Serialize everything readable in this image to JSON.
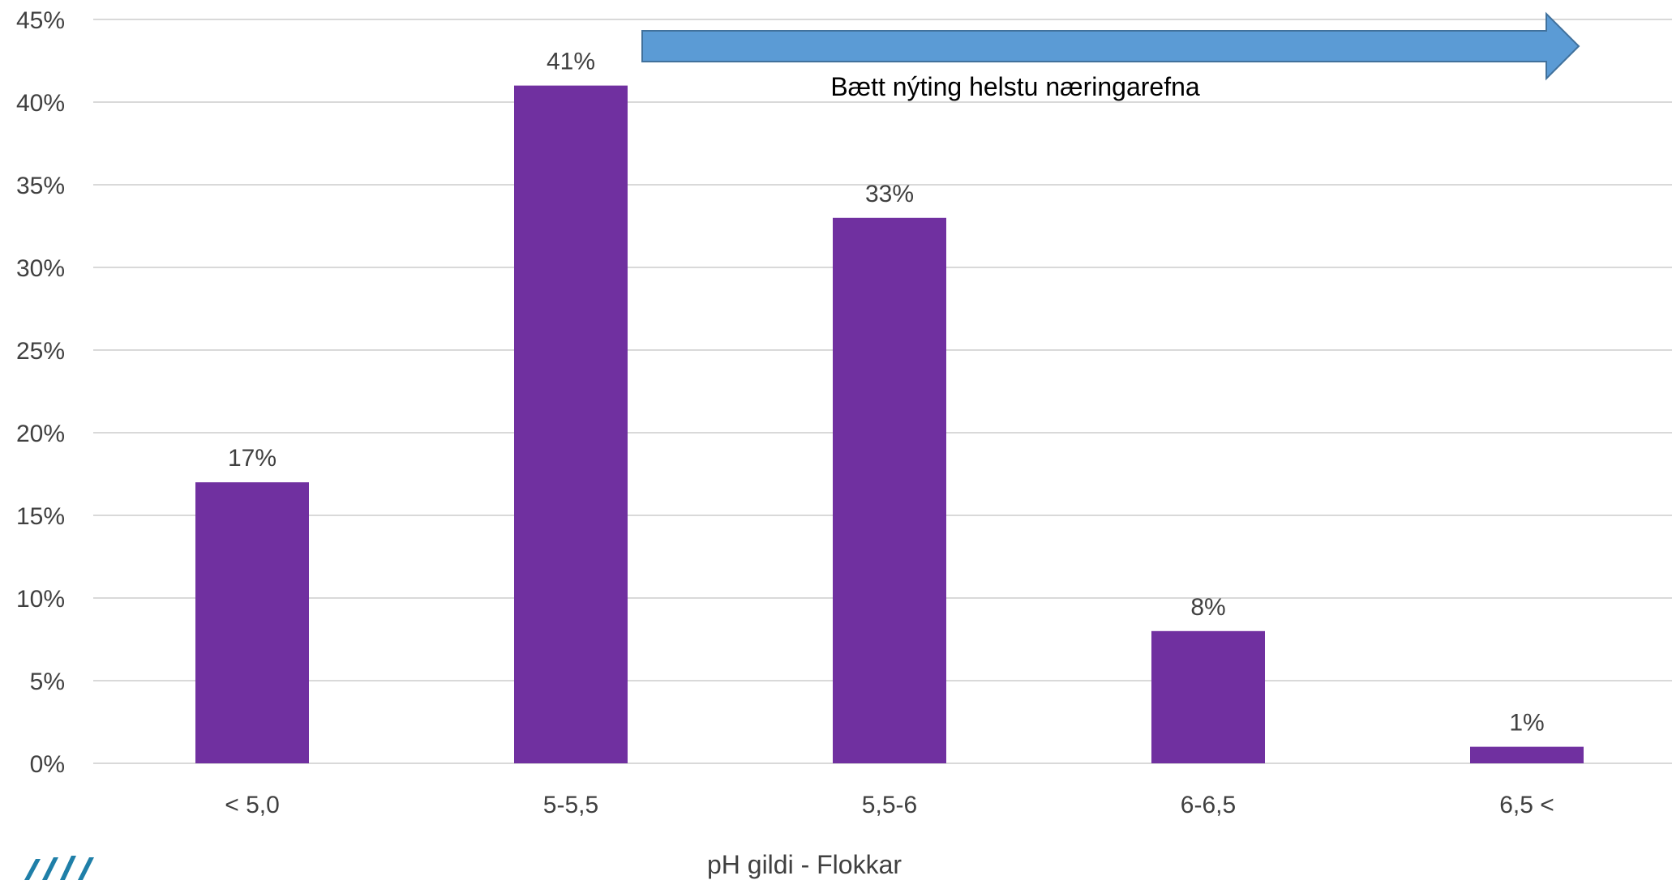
{
  "chart_data": {
    "type": "bar",
    "categories": [
      "< 5,0",
      "5-5,5",
      "5,5-6",
      "6-6,5",
      "6,5 <"
    ],
    "values": [
      17,
      41,
      33,
      8,
      1
    ],
    "data_labels": [
      "17%",
      "41%",
      "33%",
      "8%",
      "1%"
    ],
    "xlabel": "pH gildi - Flokkar",
    "ylabel": "",
    "ylim": [
      0,
      45
    ],
    "yticks": [
      0,
      5,
      10,
      15,
      20,
      25,
      30,
      35,
      40,
      45
    ],
    "ytick_labels": [
      "0%",
      "5%",
      "10%",
      "15%",
      "20%",
      "25%",
      "30%",
      "35%",
      "40%",
      "45%"
    ],
    "grid": true,
    "annotation": "Bætt nýting helstu næringarefna",
    "colors": {
      "bar": "#7030A0",
      "arrow": "#5B9BD5",
      "arrow_stroke": "#41719C",
      "grid": "#D9D9D9"
    }
  }
}
